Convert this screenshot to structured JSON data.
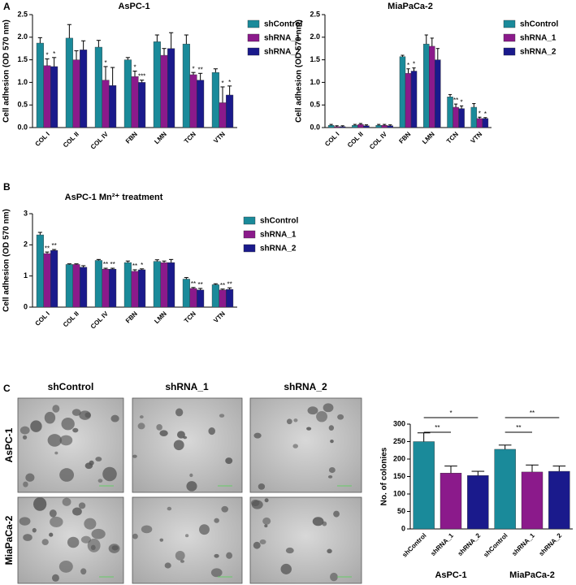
{
  "figure": {
    "panels": [
      "A",
      "B",
      "C"
    ],
    "micrographs": {
      "columns": [
        "shControl",
        "shRNA_1",
        "shRNA_2"
      ],
      "rows": [
        "AsPC-1",
        "MiaPaCa-2"
      ]
    }
  },
  "chart_data": [
    {
      "type": "bar",
      "title": "AsPC-1",
      "y_label": "Cell adhesion (OD 570 nm)",
      "categories": [
        "COL I",
        "COL II",
        "COL IV",
        "FBN",
        "LMN",
        "TCN",
        "VTN"
      ],
      "ylim": [
        0,
        2.5
      ],
      "yticks": [
        {
          "value": 0,
          "label": "0.0"
        },
        0.5,
        {
          "value": 1,
          "label": "1.0"
        },
        1.5,
        {
          "value": 2,
          "label": "2.0"
        },
        2.5
      ],
      "legend": "right",
      "series": [
        {
          "name": "shControl",
          "color": "#1a8a9a",
          "values": [
            1.87,
            1.98,
            1.78,
            1.5,
            1.9,
            1.85,
            1.22
          ],
          "errors": [
            0.12,
            0.3,
            0.15,
            0.05,
            0.15,
            0.2,
            0.08
          ],
          "annotations": [
            null,
            null,
            null,
            null,
            null,
            null,
            null
          ]
        },
        {
          "name": "shRNA_1",
          "color": "#8b1a8b",
          "values": [
            1.37,
            1.5,
            1.05,
            1.13,
            1.6,
            1.17,
            0.55
          ],
          "errors": [
            0.15,
            0.2,
            0.3,
            0.12,
            0.15,
            0.05,
            0.35
          ],
          "annotations": [
            "*",
            null,
            "*",
            "*",
            null,
            "*",
            "*"
          ]
        },
        {
          "name": "shRNA_2",
          "color": "#1a1a8c",
          "values": [
            1.35,
            1.72,
            0.93,
            1.0,
            1.75,
            1.05,
            0.72
          ],
          "errors": [
            0.2,
            0.2,
            0.4,
            0.05,
            0.35,
            0.15,
            0.2
          ],
          "annotations": [
            "*",
            null,
            null,
            "***",
            null,
            "**",
            "*"
          ]
        }
      ]
    },
    {
      "type": "bar",
      "title": "MiaPaCa-2",
      "y_label": "Cell adhesion (OD 570 nm)",
      "categories": [
        "COL I",
        "COL II",
        "COL IV",
        "FBN",
        "LMN",
        "TCN",
        "VTN"
      ],
      "ylim": [
        0,
        2.5
      ],
      "yticks": [
        {
          "value": 0,
          "label": "0.0"
        },
        0.5,
        {
          "value": 1,
          "label": "1.0"
        },
        1.5,
        {
          "value": 2,
          "label": "2.0"
        },
        2.5
      ],
      "legend": "right",
      "series": [
        {
          "name": "shControl",
          "color": "#1a8a9a",
          "values": [
            0.05,
            0.05,
            0.05,
            1.57,
            1.85,
            0.68,
            0.45
          ],
          "errors": [
            0.02,
            0.02,
            0.02,
            0.03,
            0.2,
            0.05,
            0.08
          ],
          "annotations": [
            null,
            null,
            null,
            null,
            null,
            null,
            null
          ]
        },
        {
          "name": "shRNA_1",
          "color": "#8b1a8b",
          "values": [
            0.02,
            0.07,
            0.05,
            1.2,
            1.8,
            0.45,
            0.2
          ],
          "errors": [
            0.02,
            0.02,
            0.02,
            0.1,
            0.18,
            0.07,
            0.03
          ],
          "annotations": [
            null,
            null,
            null,
            "*",
            null,
            "**",
            "*"
          ]
        },
        {
          "name": "shRNA_2",
          "color": "#1a1a8c",
          "values": [
            0.02,
            0.04,
            0.04,
            1.25,
            1.5,
            0.42,
            0.2
          ],
          "errors": [
            0.02,
            0.02,
            0.02,
            0.07,
            0.25,
            0.06,
            0.02
          ],
          "annotations": [
            null,
            null,
            null,
            "*",
            null,
            "*",
            "*"
          ]
        }
      ]
    },
    {
      "type": "bar",
      "title": "AsPC-1 Mn²⁺ treatment",
      "y_label": "Cell adhesion (OD 570 nm)",
      "categories": [
        "COL I",
        "COL II",
        "COL IV",
        "FBN",
        "LMN",
        "TCN",
        "VTN"
      ],
      "ylim": [
        0,
        3
      ],
      "yticks": [
        0,
        1,
        2,
        3
      ],
      "legend": "right",
      "series": [
        {
          "name": "shControl",
          "color": "#1a8a9a",
          "values": [
            2.32,
            1.37,
            1.5,
            1.43,
            1.47,
            0.9,
            0.72
          ],
          "errors": [
            0.08,
            0.02,
            0.03,
            0.05,
            0.05,
            0.05,
            0.03
          ],
          "annotations": [
            null,
            null,
            null,
            null,
            null,
            null,
            null
          ]
        },
        {
          "name": "shRNA_1",
          "color": "#8b1a8b",
          "values": [
            1.72,
            1.37,
            1.22,
            1.15,
            1.43,
            0.6,
            0.55
          ],
          "errors": [
            0.05,
            0.02,
            0.03,
            0.05,
            0.05,
            0.03,
            0.03
          ],
          "annotations": [
            "**",
            null,
            "**",
            "**",
            null,
            "**",
            "**"
          ]
        },
        {
          "name": "shRNA_2",
          "color": "#1a1a8c",
          "values": [
            1.82,
            1.28,
            1.22,
            1.2,
            1.43,
            0.55,
            0.57
          ],
          "errors": [
            0.03,
            0.05,
            0.03,
            0.03,
            0.1,
            0.05,
            0.05
          ],
          "annotations": [
            "**",
            null,
            "**",
            "*",
            null,
            "**",
            "**"
          ]
        }
      ]
    },
    {
      "type": "simplebar",
      "y_label": "No. of colonies",
      "categories": [
        "shControl",
        "shRNA_1",
        "shRNA_2",
        "shControl",
        "shRNA_1",
        "shRNA_2"
      ],
      "group_labels": [
        "AsPC-1",
        "MiaPaCa-2"
      ],
      "values": [
        250,
        160,
        153,
        228,
        163,
        165
      ],
      "errors": [
        25,
        20,
        12,
        12,
        20,
        15
      ],
      "colors": [
        "#1a8a9a",
        "#8b1a8b",
        "#1a1a8c",
        "#1a8a9a",
        "#8b1a8b",
        "#1a1a8c"
      ],
      "ylim": [
        0,
        300
      ],
      "yticks": [
        0,
        50,
        100,
        150,
        200,
        250,
        300
      ],
      "brackets": [
        {
          "pair": [
            0,
            1
          ],
          "label": "**"
        },
        {
          "pair": [
            0,
            2
          ],
          "label": "*"
        },
        {
          "pair": [
            3,
            4
          ],
          "label": "**"
        },
        {
          "pair": [
            3,
            5
          ],
          "label": "**"
        }
      ]
    }
  ]
}
